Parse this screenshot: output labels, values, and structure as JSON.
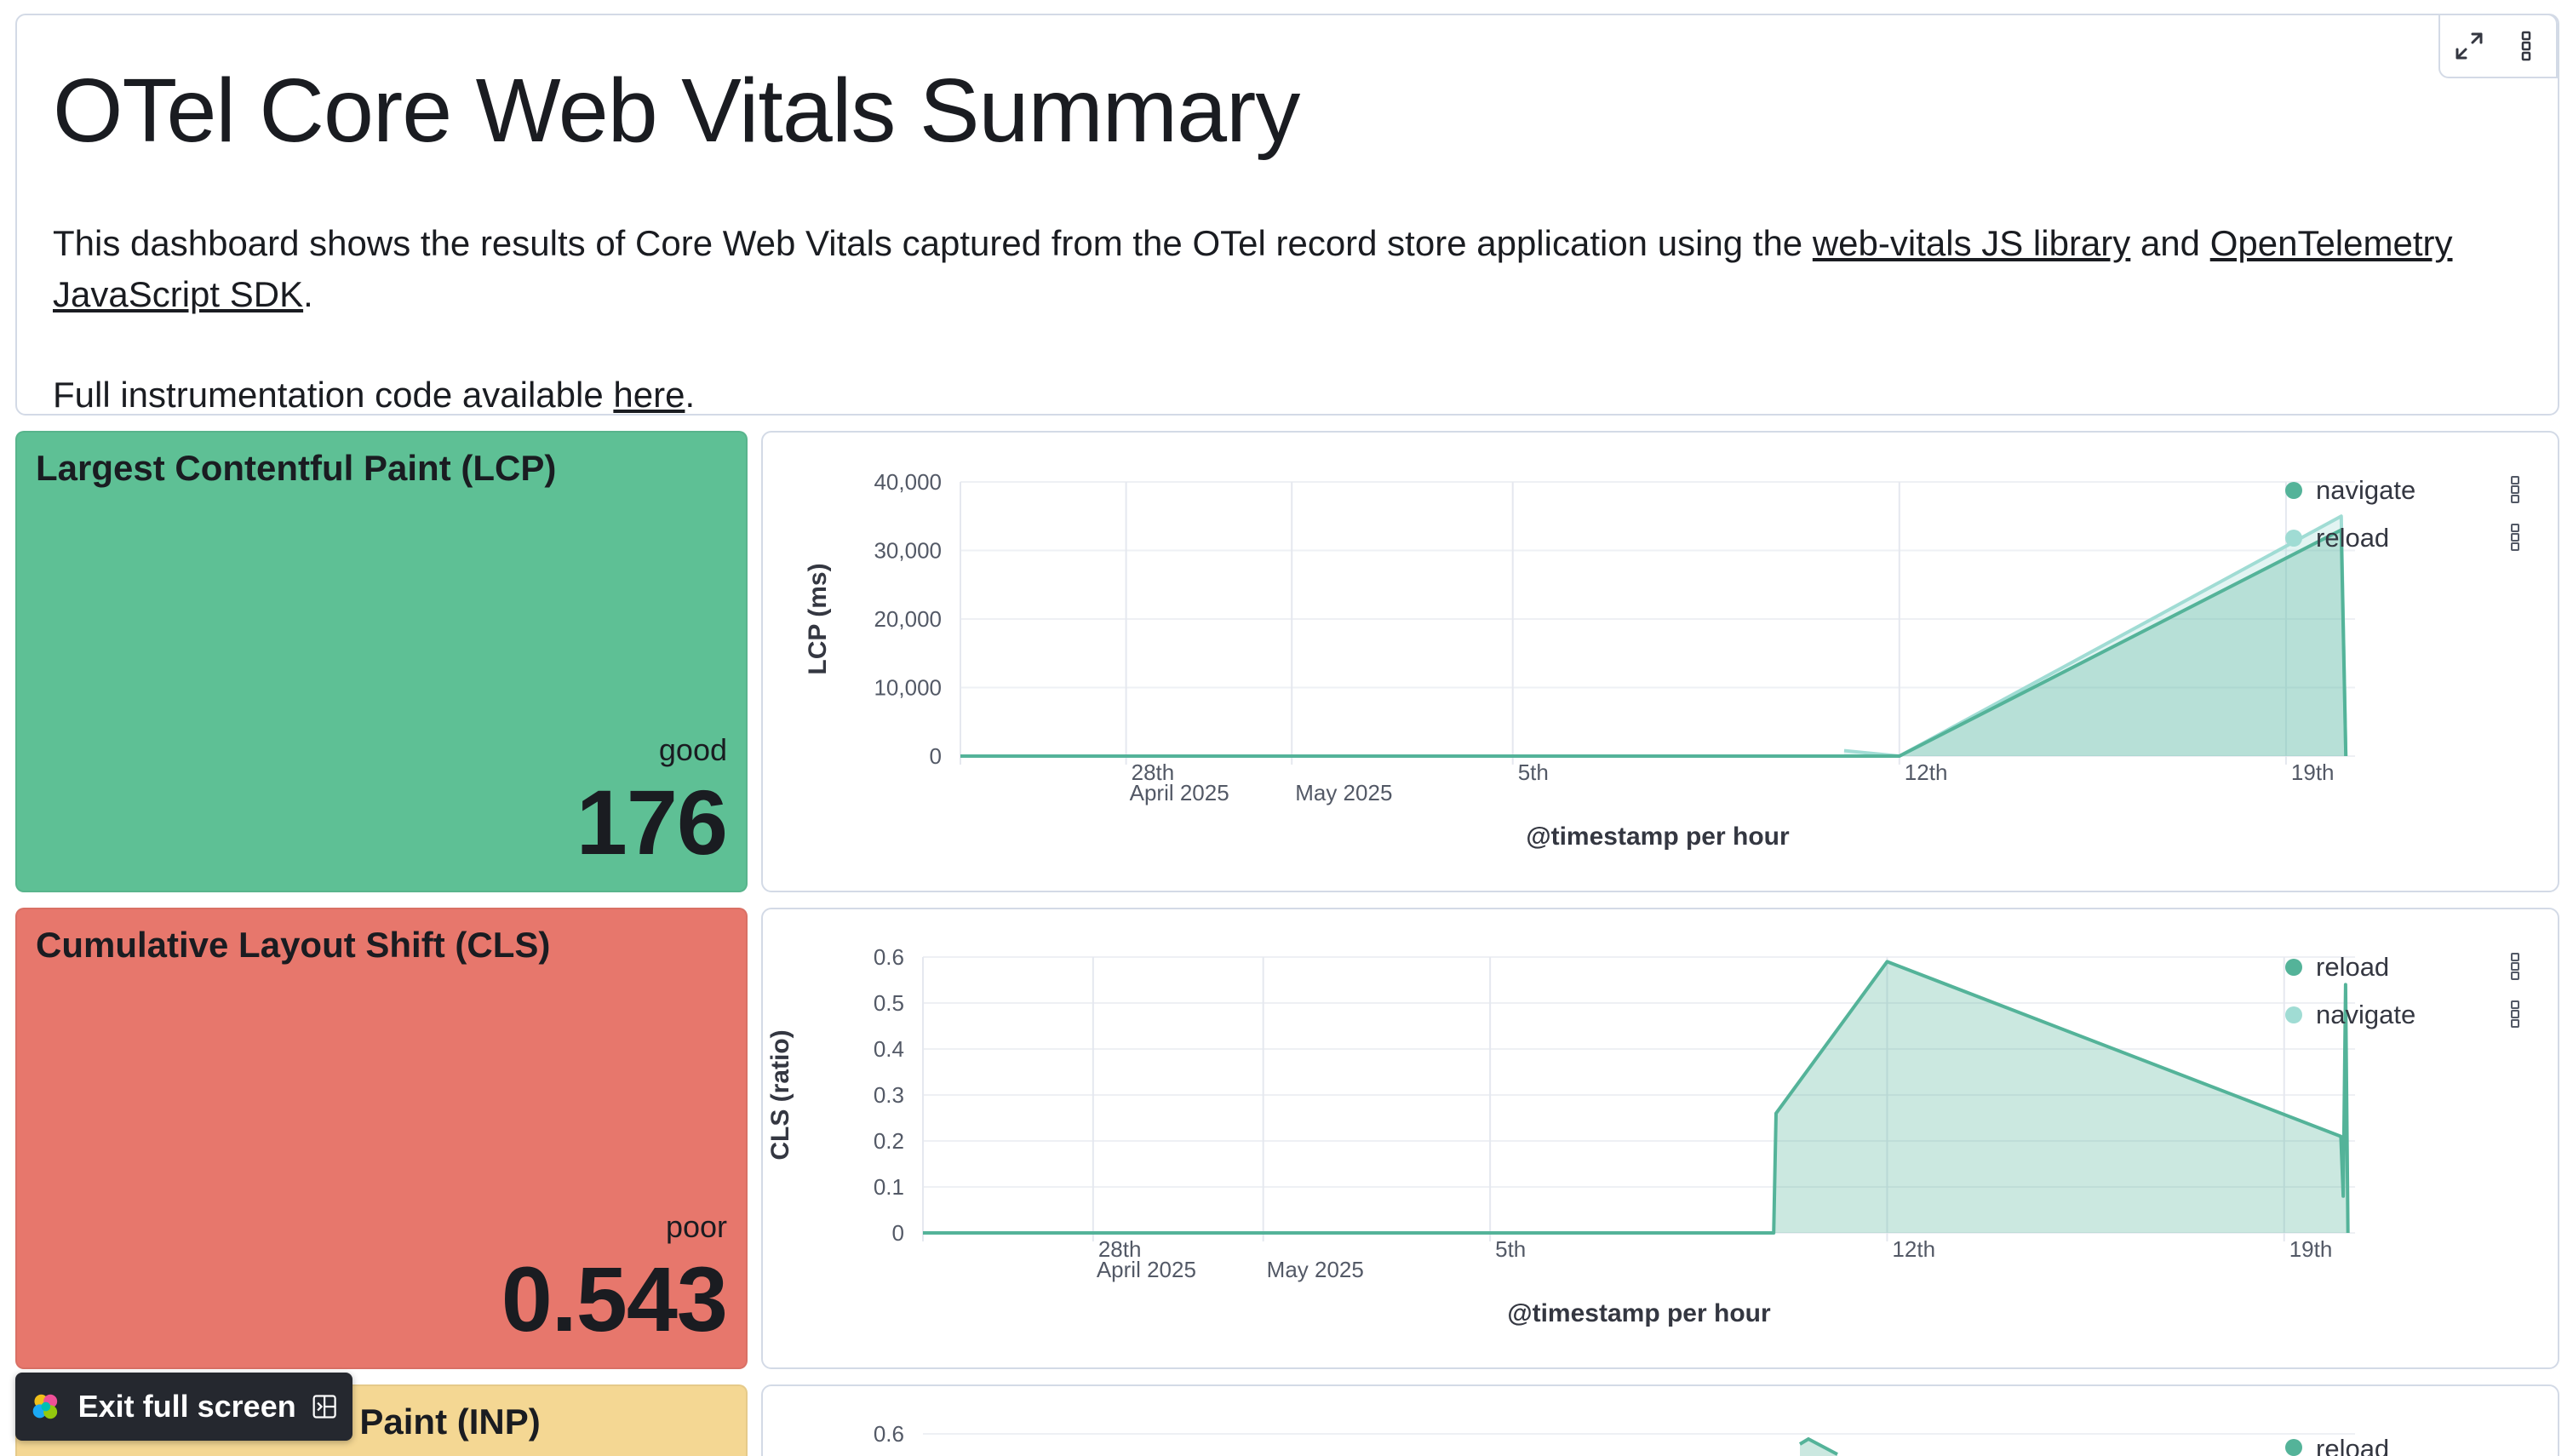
{
  "markdown": {
    "title": "OTel Core Web Vitals Summary",
    "para_prefix": "This dashboard shows the results of Core Web Vitals captured from the OTel record store application using the ",
    "link1": "web-vitals JS library",
    "para_mid": " and ",
    "link2": "OpenTelemetry JavaScript SDK",
    "para_suffix": ".",
    "code_prefix": "Full instrumentation code available ",
    "code_link": "here",
    "code_suffix": "."
  },
  "metrics": [
    {
      "title": "Largest Contentful Paint (LCP)",
      "rating": "good",
      "value": "176",
      "color": "#5ec095"
    },
    {
      "title": "Cumulative Layout Shift (CLS)",
      "rating": "poor",
      "value": "0.543",
      "color": "#e7776c"
    },
    {
      "title": "Interaction to Next Paint (INP)",
      "color": "#f4d793"
    }
  ],
  "exit_fullscreen": {
    "label": "Exit full screen"
  },
  "chart_data": [
    {
      "type": "area",
      "ylabel": "LCP (ms)",
      "xlabel": "@timestamp per hour",
      "ylim": [
        0,
        40000
      ],
      "yticks": [
        "40,000",
        "30,000",
        "20,000",
        "10,000",
        "0"
      ],
      "xticks": [
        {
          "label": "28th",
          "sub": "April 2025"
        },
        {
          "label": "",
          "sub": "May 2025"
        },
        {
          "label": "5th",
          "sub": ""
        },
        {
          "label": "12th",
          "sub": ""
        },
        {
          "label": "19th",
          "sub": ""
        }
      ],
      "legend": [
        "navigate",
        "reload"
      ],
      "series": [
        {
          "name": "navigate",
          "color": "#54b399",
          "points": [
            [
              "2025-04-25",
              0
            ],
            [
              "2025-05-12",
              0
            ],
            [
              "2025-05-20",
              33000
            ],
            [
              "2025-05-20T02",
              0
            ]
          ]
        },
        {
          "name": "reload",
          "color": "#a0dcd4",
          "points": [
            [
              "2025-05-11",
              800
            ],
            [
              "2025-05-12",
              0
            ],
            [
              "2025-05-20",
              35000
            ],
            [
              "2025-05-20T02",
              0
            ]
          ]
        }
      ]
    },
    {
      "type": "area",
      "ylabel": "CLS (ratio)",
      "xlabel": "@timestamp per hour",
      "ylim": [
        0,
        0.6
      ],
      "yticks": [
        "0.6",
        "0.5",
        "0.4",
        "0.3",
        "0.2",
        "0.1",
        "0"
      ],
      "xticks": [
        {
          "label": "28th",
          "sub": "April 2025"
        },
        {
          "label": "",
          "sub": "May 2025"
        },
        {
          "label": "5th",
          "sub": ""
        },
        {
          "label": "12th",
          "sub": ""
        },
        {
          "label": "19th",
          "sub": ""
        }
      ],
      "legend": [
        "reload",
        "navigate"
      ],
      "series": [
        {
          "name": "reload",
          "color": "#54b399",
          "points": [
            [
              "2025-04-25",
              0
            ],
            [
              "2025-05-10",
              0
            ],
            [
              "2025-05-10T01",
              0.26
            ],
            [
              "2025-05-12",
              0.59
            ],
            [
              "2025-05-20",
              0.21
            ],
            [
              "2025-05-20T01",
              0.08
            ],
            [
              "2025-05-20T02",
              0.54
            ],
            [
              "2025-05-20T03",
              0
            ]
          ]
        }
      ]
    },
    {
      "type": "area",
      "yticks": [
        "0.6"
      ],
      "legend": [
        "reload"
      ]
    }
  ]
}
